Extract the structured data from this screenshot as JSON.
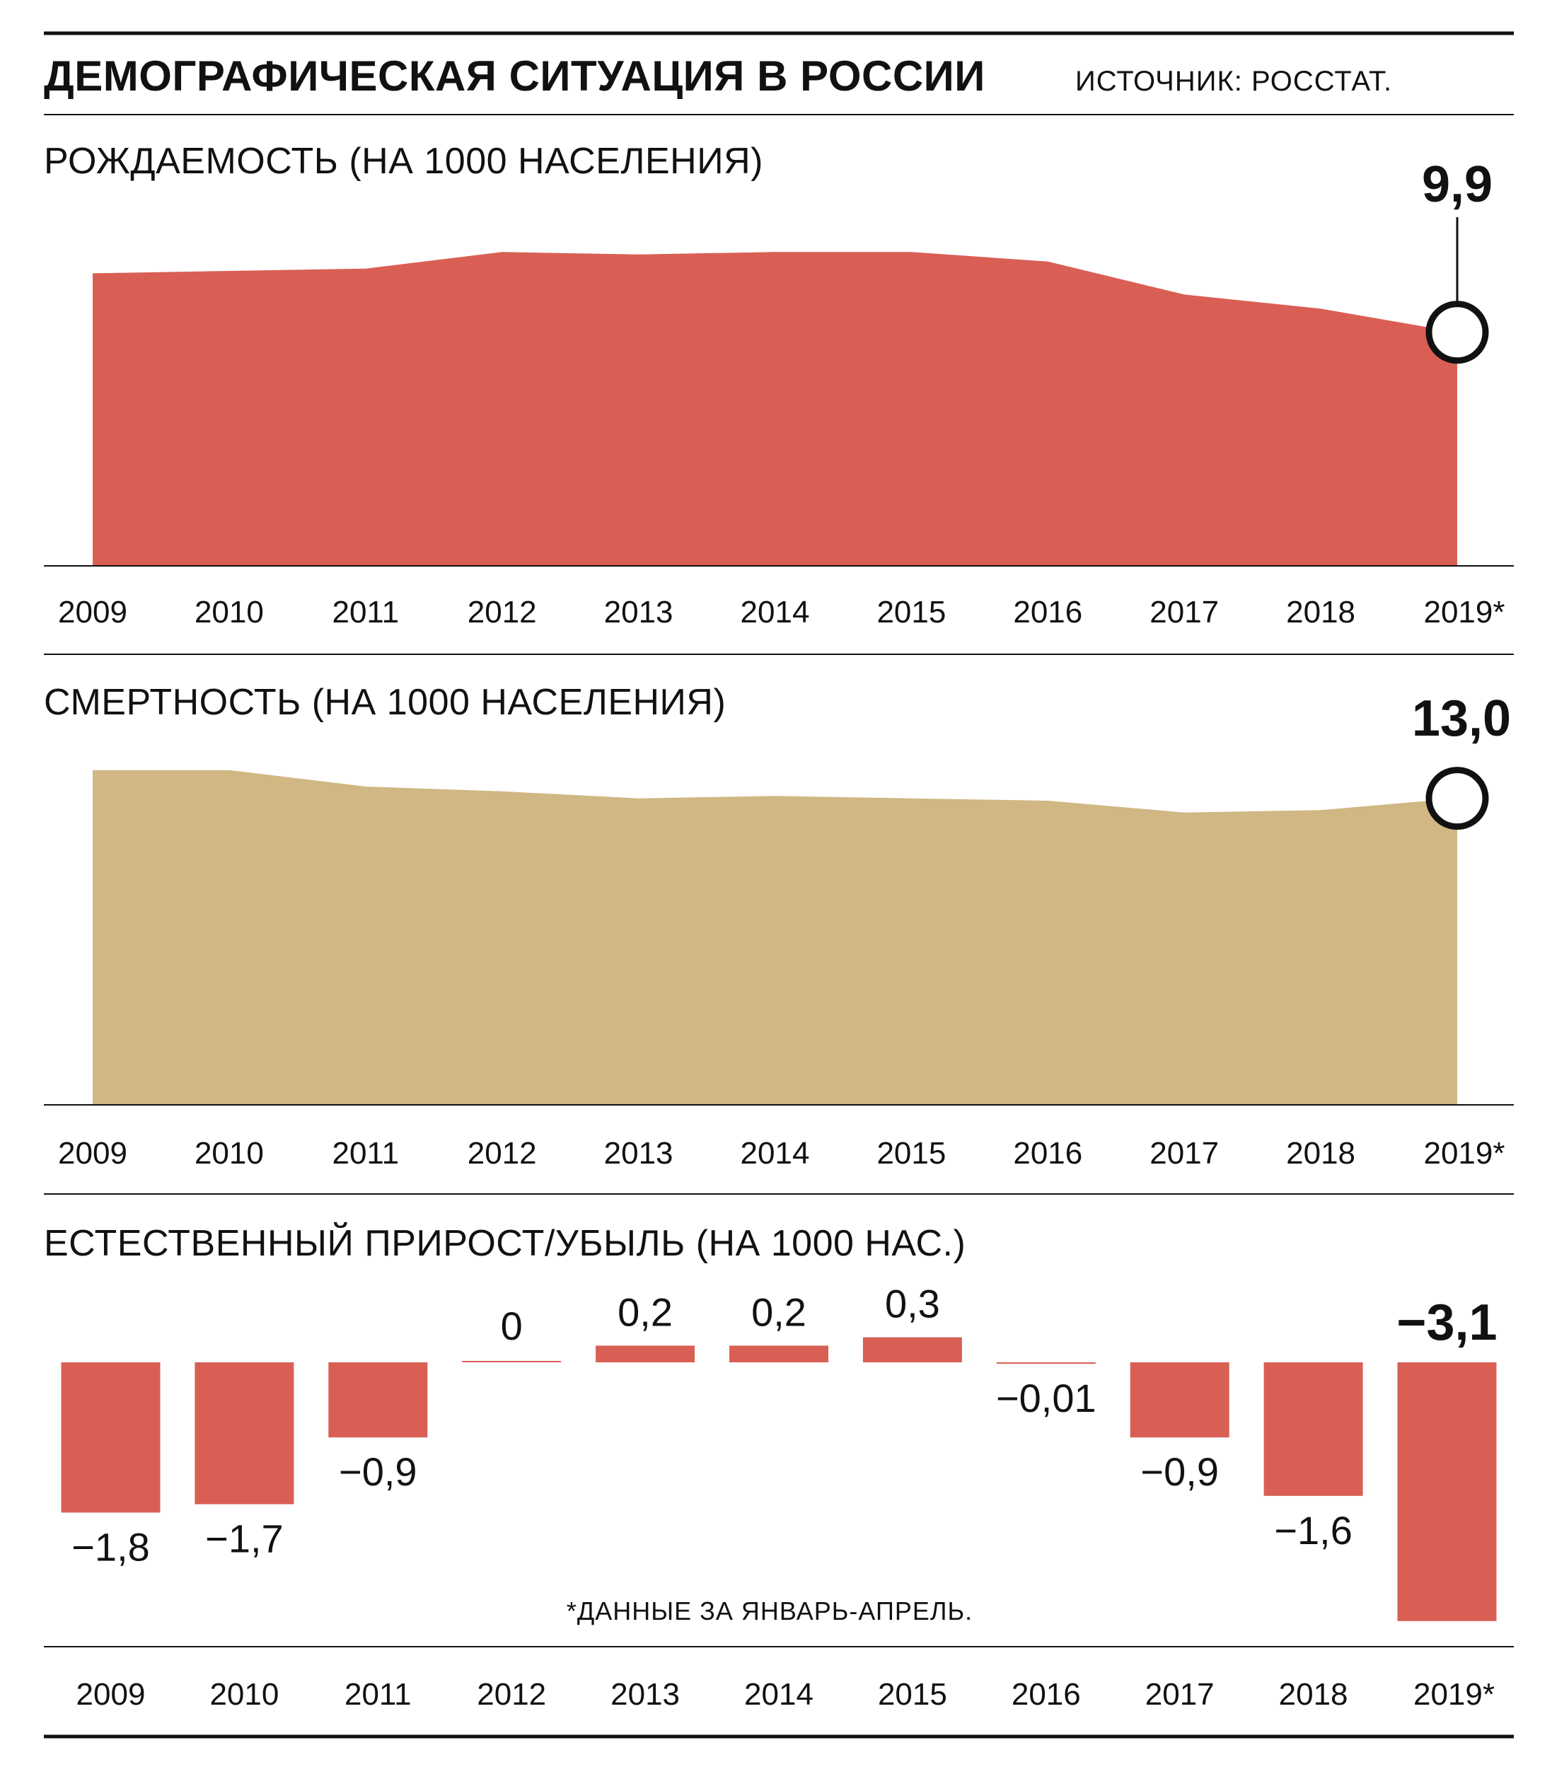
{
  "header": {
    "title": "ДЕМОГРАФИЧЕСКАЯ СИТУАЦИЯ В РОССИИ",
    "source": "ИСТОЧНИК: РОССТАТ."
  },
  "colors": {
    "red": "#d95f55",
    "tan": "#d0b783",
    "ink": "#111111"
  },
  "footnote": "*ДАННЫЕ ЗА ЯНВАРЬ-АПРЕЛЬ.",
  "chart_data": [
    {
      "id": "birth",
      "type": "area",
      "title": "РОЖДАЕМОСТЬ (НА 1000 НАСЕЛЕНИЯ)",
      "categories": [
        "2009",
        "2010",
        "2011",
        "2012",
        "2013",
        "2014",
        "2015",
        "2016",
        "2017",
        "2018",
        "2019*"
      ],
      "values": [
        12.4,
        12.5,
        12.6,
        13.3,
        13.2,
        13.3,
        13.3,
        12.9,
        11.5,
        10.9,
        9.9
      ],
      "highlight": {
        "index": 10,
        "label": "9,9"
      },
      "ylim": [
        0,
        14
      ],
      "color": "#d95f55"
    },
    {
      "id": "death",
      "type": "area",
      "title": "СМЕРТНОСТЬ (НА 1000 НАСЕЛЕНИЯ)",
      "categories": [
        "2009",
        "2010",
        "2011",
        "2012",
        "2013",
        "2014",
        "2015",
        "2016",
        "2017",
        "2018",
        "2019*"
      ],
      "values": [
        14.2,
        14.2,
        13.5,
        13.3,
        13.0,
        13.1,
        13.0,
        12.9,
        12.4,
        12.5,
        13.0
      ],
      "highlight": {
        "index": 10,
        "label": "13,0"
      },
      "ylim": [
        0,
        15
      ],
      "color": "#d0b783"
    },
    {
      "id": "natural",
      "type": "bar",
      "title": "ЕСТЕСТВЕННЫЙ ПРИРОСТ/УБЫЛЬ (НА 1000 НАС.)",
      "categories": [
        "2009",
        "2010",
        "2011",
        "2012",
        "2013",
        "2014",
        "2015",
        "2016",
        "2017",
        "2018",
        "2019*"
      ],
      "values": [
        -1.8,
        -1.7,
        -0.9,
        0,
        0.2,
        0.2,
        0.3,
        -0.01,
        -0.9,
        -1.6,
        -3.1
      ],
      "labels": [
        "−1,8",
        "−1,7",
        "−0,9",
        "0",
        "0,2",
        "0,2",
        "0,3",
        "−0,01",
        "−0,9",
        "−1,6",
        "−3,1"
      ],
      "highlight_index": 10,
      "color": "#d95f55"
    }
  ]
}
